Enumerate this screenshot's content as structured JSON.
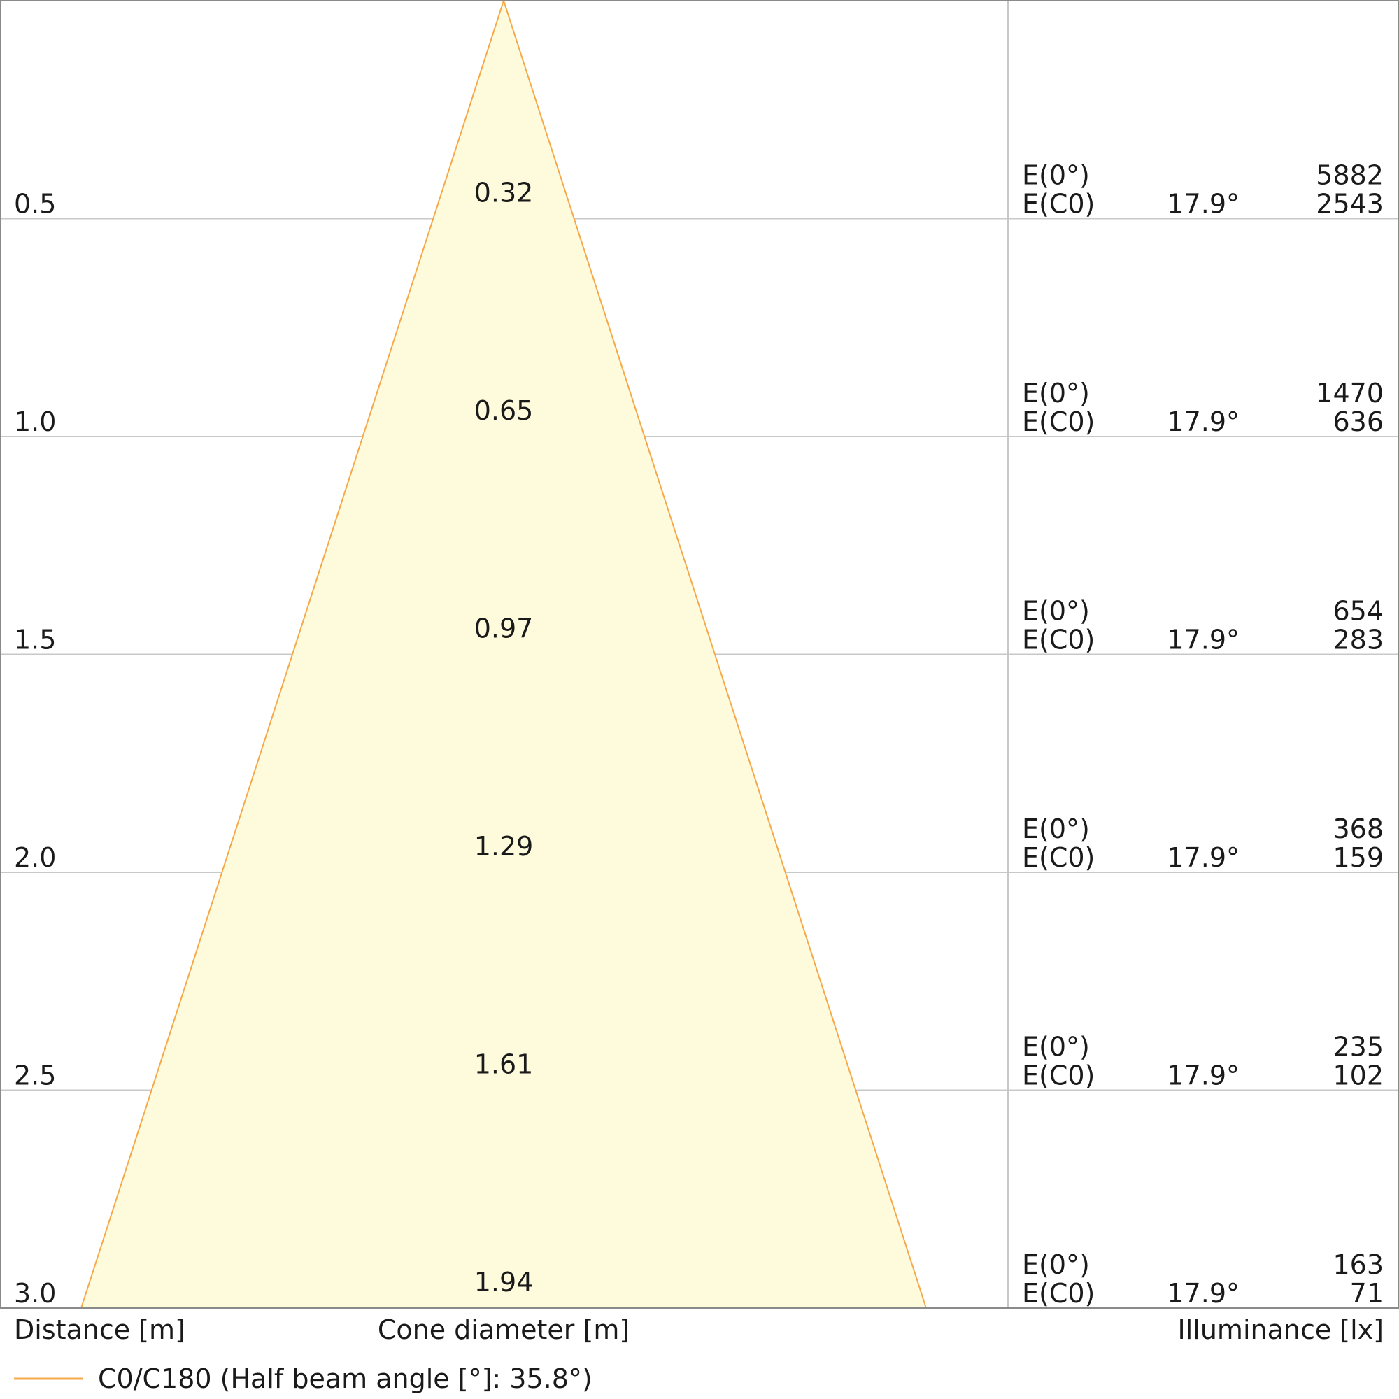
{
  "chart_data": {
    "type": "cone_diagram",
    "xlabel": "Distance [m]",
    "center_label": "Cone diameter [m]",
    "ylabel": "Illuminance [lx]",
    "legend": {
      "label": "C0/C180 (Half beam angle [°]: 35.8°)",
      "color": "#f5a94a"
    },
    "cone_fill": "#fdfbdc",
    "cone_stroke": "#f5a94a",
    "grid_color": "#c8c8c8",
    "max_distance": 3.0,
    "rows": [
      {
        "distance": "0.5",
        "diameter": "0.32",
        "e0_label": "E(0°)",
        "e0": "5882",
        "ec0_label": "E(C0)",
        "angle": "17.9°",
        "ec0": "2543"
      },
      {
        "distance": "1.0",
        "diameter": "0.65",
        "e0_label": "E(0°)",
        "e0": "1470",
        "ec0_label": "E(C0)",
        "angle": "17.9°",
        "ec0": "636"
      },
      {
        "distance": "1.5",
        "diameter": "0.97",
        "e0_label": "E(0°)",
        "e0": "654",
        "ec0_label": "E(C0)",
        "angle": "17.9°",
        "ec0": "283"
      },
      {
        "distance": "2.0",
        "diameter": "1.29",
        "e0_label": "E(0°)",
        "e0": "368",
        "ec0_label": "E(C0)",
        "angle": "17.9°",
        "ec0": "159"
      },
      {
        "distance": "2.5",
        "diameter": "1.61",
        "e0_label": "E(0°)",
        "e0": "235",
        "ec0_label": "E(C0)",
        "angle": "17.9°",
        "ec0": "102"
      },
      {
        "distance": "3.0",
        "diameter": "1.94",
        "e0_label": "E(0°)",
        "e0": "163",
        "ec0_label": "E(C0)",
        "angle": "17.9°",
        "ec0": "71"
      }
    ]
  }
}
